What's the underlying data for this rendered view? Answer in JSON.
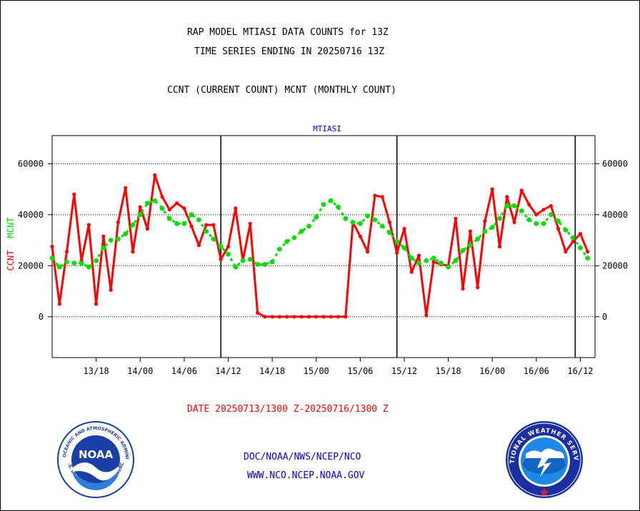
{
  "header": {
    "line1": "RAP MODEL MTIASI DATA COUNTS for 13Z",
    "line2": "TIME SERIES ENDING IN 20250716 13Z",
    "line3": "CCNT (CURRENT COUNT) MCNT (MONTHLY COUNT)"
  },
  "footer": {
    "date_range": "DATE 20250713/1300 Z-20250716/1300 Z",
    "link1": "DOC/NOAA/NWS/NCEP/NCO",
    "link2": "WWW.NCO.NCEP.NOAA.GOV"
  },
  "logos": {
    "noaa": "NOAA",
    "noaa_ring": "NATIONAL OCEANIC AND ATMOSPHERIC ADMINISTRATION",
    "noaa_ring_bottom": "U.S. DEPARTMENT OF COMMERCE",
    "nws_ring": "NATIONAL WEATHER SERVICE"
  },
  "colors": {
    "ccnt": "#ff0000",
    "mcnt": "#00dd00",
    "title": "#0000cc",
    "axis": "#000000"
  },
  "chart_data": {
    "type": "line",
    "title": "MTIASI",
    "ylabel_ccnt": "CCNT",
    "ylabel_mcnt": "MCNT",
    "ylim": [
      -16000,
      71000
    ],
    "yticks": [
      0,
      20000,
      40000,
      60000
    ],
    "ytick_labels": [
      "0",
      "20000",
      "40000",
      "60000"
    ],
    "xlim": [
      0,
      74
    ],
    "xticks": [
      6,
      12,
      18,
      24,
      30,
      36,
      42,
      48,
      54,
      60,
      66,
      72
    ],
    "xtick_labels": [
      "13/18",
      "14/00",
      "14/06",
      "14/12",
      "14/18",
      "15/00",
      "15/06",
      "15/12",
      "15/18",
      "16/00",
      "16/06",
      "16/12"
    ],
    "day_lines": [
      23,
      47,
      71.3
    ],
    "grid": true,
    "series": [
      {
        "name": "CCNT",
        "values": [
          27500,
          5000,
          25500,
          48000,
          22000,
          36000,
          5000,
          31500,
          10500,
          37000,
          50500,
          25500,
          43000,
          34500,
          55500,
          47000,
          42000,
          44500,
          42500,
          35500,
          28000,
          36000,
          36000,
          22500,
          27500,
          42500,
          22000,
          36500,
          1500,
          0,
          0,
          0,
          0,
          0,
          0,
          0,
          0,
          0,
          0,
          0,
          0,
          37000,
          31500,
          25500,
          47500,
          47000,
          37000,
          25000,
          34500,
          17500,
          24000,
          500,
          21500,
          20500,
          20000,
          38500,
          11000,
          33500,
          11500,
          37500,
          50000,
          27500,
          47000,
          37000,
          49500,
          44000,
          40000,
          42000,
          43500,
          34500,
          25500,
          29500,
          32500,
          25500
        ]
      },
      {
        "name": "MCNT",
        "values": [
          23000,
          19500,
          21500,
          21000,
          21000,
          19500,
          22000,
          27000,
          30000,
          30500,
          32500,
          36000,
          40000,
          44500,
          45500,
          42500,
          38500,
          36500,
          36500,
          40000,
          38000,
          33500,
          30500,
          27500,
          24500,
          19500,
          22000,
          22500,
          20500,
          20500,
          21500,
          26500,
          29500,
          31000,
          33500,
          35500,
          39000,
          44000,
          45500,
          43000,
          38500,
          37000,
          36500,
          39500,
          38000,
          35500,
          33000,
          29500,
          27000,
          23000,
          21000,
          22000,
          23000,
          21000,
          19500,
          22000,
          26000,
          28000,
          30500,
          33500,
          35000,
          38500,
          43500,
          43500,
          41500,
          38000,
          36500,
          36500,
          40000,
          37500,
          34000,
          31000,
          27000,
          23000
        ]
      }
    ]
  }
}
